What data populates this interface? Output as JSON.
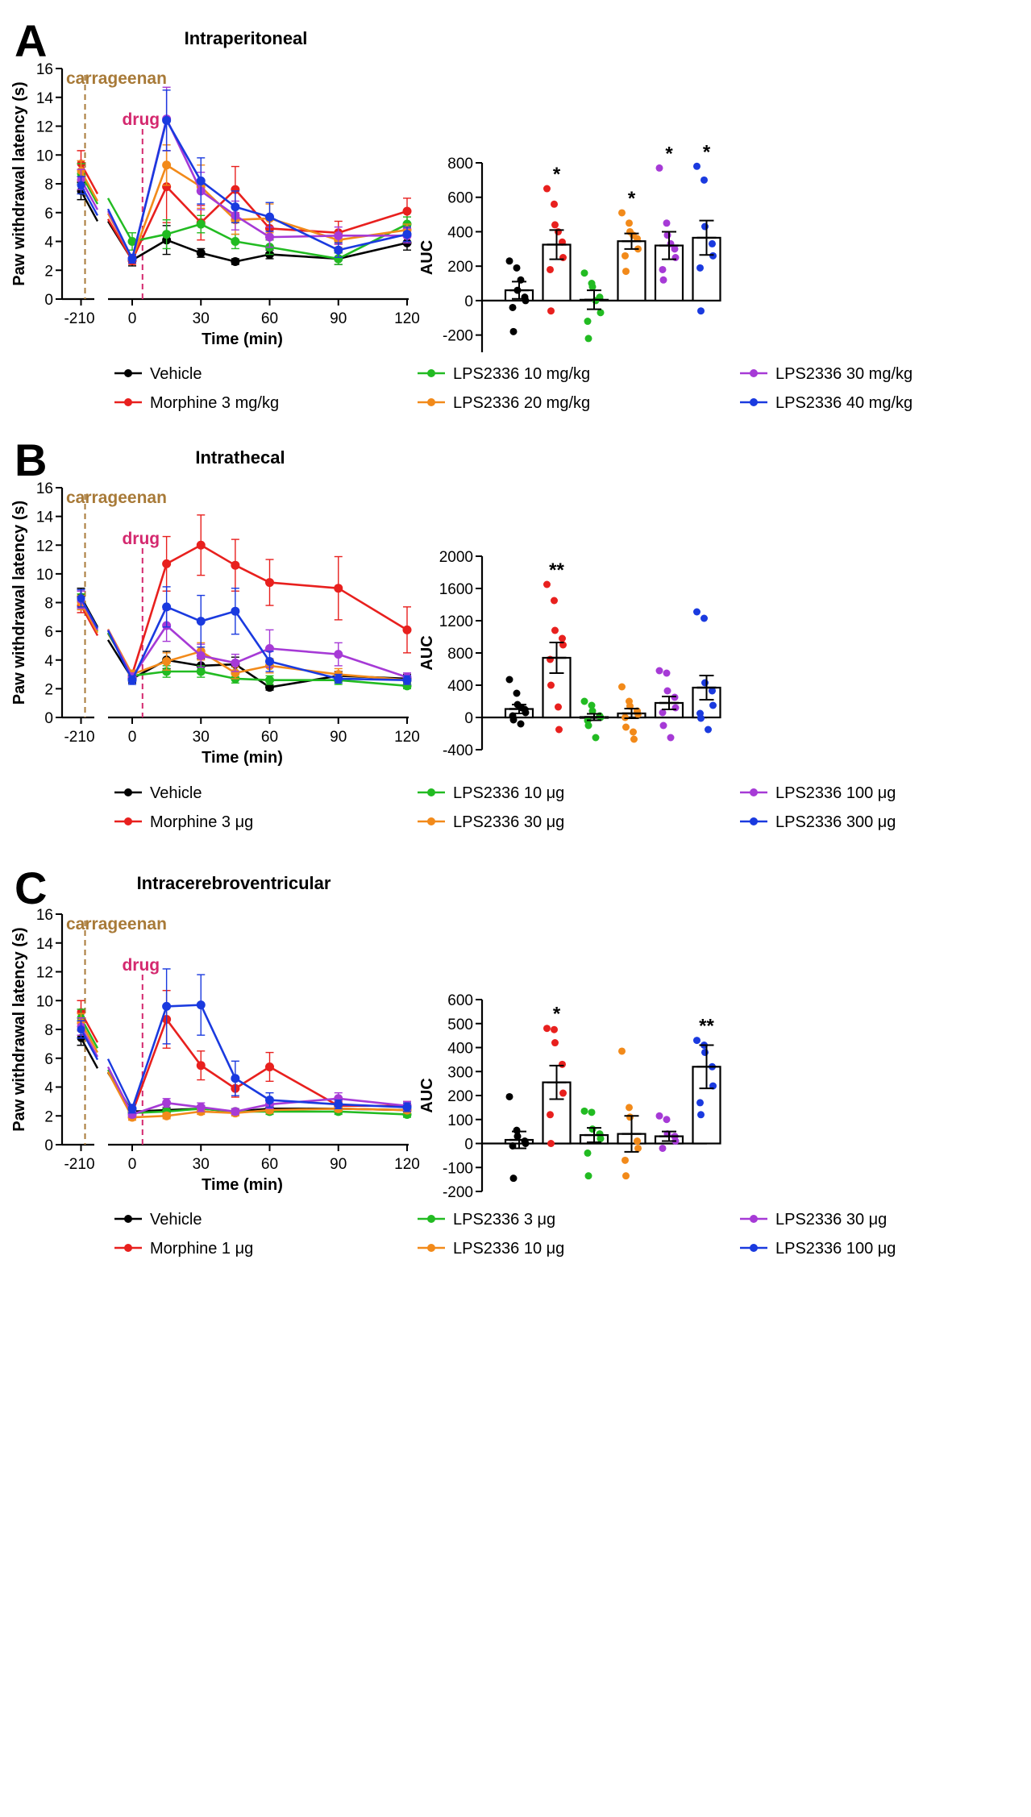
{
  "figure": {
    "colors": {
      "axis": "#000000",
      "carrageenan": "#a87a38",
      "drug": "#d4286e",
      "vehicle": "#000000",
      "morphine": "#e8201e",
      "dose1": "#22bb22",
      "dose2": "#f28a1a",
      "dose3": "#a63ad6",
      "dose4": "#1a3adf"
    }
  },
  "chart_data": [
    {
      "type": "line",
      "panel": "A",
      "title": "Intraperitoneal",
      "xlabel": "Time (min)",
      "ylabel": "Paw withdrawal latency (s)",
      "ylim": [
        0,
        16
      ],
      "yticks": [
        0,
        2,
        4,
        6,
        8,
        10,
        12,
        14,
        16
      ],
      "baseline_x": -210,
      "x": [
        0,
        15,
        30,
        45,
        60,
        90,
        120
      ],
      "xticks": [
        0,
        30,
        60,
        90,
        120
      ],
      "event_labels": {
        "carrageenan": "carrageenan",
        "drug": "drug"
      },
      "series": [
        {
          "name": "Vehicle",
          "color": "#000000",
          "baseline": 7.5,
          "baseline_err": 0.6,
          "values": [
            2.7,
            4.1,
            3.2,
            2.6,
            3.1,
            2.8,
            3.9
          ],
          "errors": [
            0.4,
            1.0,
            0.3,
            0.2,
            0.3,
            0.4,
            0.5
          ]
        },
        {
          "name": "Morphine 3 mg/kg",
          "color": "#e8201e",
          "baseline": 9.4,
          "baseline_err": 0.9,
          "values": [
            2.7,
            7.8,
            5.3,
            7.6,
            4.9,
            4.6,
            6.1
          ],
          "errors": [
            0.3,
            2.5,
            1.2,
            1.6,
            0.8,
            0.8,
            0.9
          ]
        },
        {
          "name": "LPS2336 10 mg/kg",
          "color": "#22bb22",
          "baseline": 8.7,
          "baseline_err": 0.7,
          "values": [
            4.0,
            4.5,
            5.2,
            4.0,
            3.6,
            2.8,
            5.2
          ],
          "errors": [
            0.6,
            1.0,
            0.6,
            0.5,
            0.5,
            0.4,
            0.5
          ]
        },
        {
          "name": "LPS2336 20 mg/kg",
          "color": "#f28a1a",
          "baseline": 8.9,
          "baseline_err": 0.7,
          "values": [
            2.8,
            9.3,
            7.8,
            5.5,
            5.6,
            4.1,
            4.8
          ],
          "errors": [
            0.3,
            1.4,
            1.5,
            1.0,
            1.0,
            0.5,
            0.4
          ]
        },
        {
          "name": "LPS2336 30 mg/kg",
          "color": "#a63ad6",
          "baseline": 8.3,
          "baseline_err": 0.7,
          "values": [
            2.8,
            12.5,
            7.5,
            5.8,
            4.3,
            4.4,
            4.4
          ],
          "errors": [
            0.3,
            2.2,
            1.3,
            1.0,
            0.7,
            0.6,
            0.5
          ]
        },
        {
          "name": "LPS2336 40 mg/kg",
          "color": "#1a3adf",
          "baseline": 7.9,
          "baseline_err": 0.6,
          "values": [
            2.8,
            12.4,
            8.2,
            6.4,
            5.7,
            3.4,
            4.5
          ],
          "errors": [
            0.3,
            2.1,
            1.6,
            1.1,
            1.0,
            0.5,
            0.5
          ]
        }
      ]
    },
    {
      "type": "bar",
      "panel": "A",
      "ylabel": "AUC",
      "ylim": [
        -300,
        800
      ],
      "yticks": [
        -200,
        0,
        200,
        400,
        600,
        800
      ],
      "bars": [
        {
          "name": "Vehicle",
          "color": "#000000",
          "value": 60,
          "sem": 50,
          "sig": "",
          "points": [
            230,
            190,
            60,
            20,
            0,
            -40,
            -180,
            120
          ]
        },
        {
          "name": "Morphine 3 mg/kg",
          "color": "#e8201e",
          "value": 325,
          "sem": 85,
          "sig": "*",
          "points": [
            650,
            560,
            440,
            340,
            250,
            180,
            -60,
            400
          ]
        },
        {
          "name": "LPS2336 10 mg/kg",
          "color": "#22bb22",
          "value": 5,
          "sem": 55,
          "sig": "",
          "points": [
            160,
            100,
            80,
            20,
            -70,
            -120,
            -220,
            0
          ]
        },
        {
          "name": "LPS2336 20 mg/kg",
          "color": "#f28a1a",
          "value": 345,
          "sem": 45,
          "sig": "*",
          "points": [
            510,
            450,
            400,
            360,
            300,
            260,
            170,
            380
          ]
        },
        {
          "name": "LPS2336 30 mg/kg",
          "color": "#a63ad6",
          "value": 320,
          "sem": 80,
          "sig": "*",
          "points": [
            770,
            450,
            380,
            300,
            250,
            180,
            120,
            330
          ]
        },
        {
          "name": "LPS2336 40 mg/kg",
          "color": "#1a3adf",
          "value": 365,
          "sem": 100,
          "sig": "*",
          "points": [
            780,
            700,
            430,
            330,
            260,
            190,
            -60
          ]
        }
      ]
    },
    {
      "type": "line",
      "panel": "B",
      "title": "Intrathecal",
      "xlabel": "Time (min)",
      "ylabel": "Paw withdrawal latency (s)",
      "ylim": [
        0,
        16
      ],
      "yticks": [
        0,
        2,
        4,
        6,
        8,
        10,
        12,
        14,
        16
      ],
      "baseline_x": -210,
      "x": [
        0,
        15,
        30,
        45,
        60,
        90,
        120
      ],
      "xticks": [
        0,
        30,
        60,
        90,
        120
      ],
      "event_labels": {
        "carrageenan": "carrageenan",
        "drug": "drug"
      },
      "series": [
        {
          "name": "Vehicle",
          "color": "#000000",
          "baseline": 8.4,
          "baseline_err": 0.6,
          "values": [
            2.7,
            4.0,
            3.6,
            3.7,
            2.1,
            2.9,
            2.7
          ],
          "errors": [
            0.3,
            0.6,
            0.5,
            0.5,
            0.2,
            0.3,
            0.3
          ]
        },
        {
          "name": "Morphine 3 μg",
          "color": "#e8201e",
          "baseline": 7.8,
          "baseline_err": 0.5,
          "values": [
            3.0,
            10.7,
            12.0,
            10.6,
            9.4,
            9.0,
            6.1
          ],
          "errors": [
            0.3,
            1.9,
            2.1,
            1.8,
            1.6,
            2.2,
            1.6
          ]
        },
        {
          "name": "LPS2336 10 μg",
          "color": "#22bb22",
          "baseline": 8.1,
          "baseline_err": 0.5,
          "values": [
            2.9,
            3.2,
            3.2,
            2.7,
            2.6,
            2.6,
            2.2
          ],
          "errors": [
            0.3,
            0.4,
            0.4,
            0.3,
            0.3,
            0.3,
            0.2
          ]
        },
        {
          "name": "LPS2336 30 μg",
          "color": "#f28a1a",
          "baseline": 8.0,
          "baseline_err": 0.5,
          "values": [
            3.0,
            3.9,
            4.6,
            3.1,
            3.6,
            3.0,
            2.6
          ],
          "errors": [
            0.3,
            0.6,
            0.6,
            0.4,
            0.5,
            0.4,
            0.3
          ]
        },
        {
          "name": "LPS2336 100 μg",
          "color": "#a63ad6",
          "baseline": 8.2,
          "baseline_err": 0.6,
          "values": [
            2.8,
            6.4,
            4.3,
            3.8,
            4.8,
            4.4,
            2.8
          ],
          "errors": [
            0.3,
            1.1,
            0.8,
            0.6,
            1.3,
            0.8,
            0.3
          ]
        },
        {
          "name": "LPS2336 300 μg",
          "color": "#1a3adf",
          "baseline": 8.3,
          "baseline_err": 0.6,
          "values": [
            2.6,
            7.7,
            6.7,
            7.4,
            3.9,
            2.7,
            2.6
          ],
          "errors": [
            0.3,
            1.4,
            1.8,
            1.6,
            0.7,
            0.3,
            0.3
          ]
        }
      ]
    },
    {
      "type": "bar",
      "panel": "B",
      "ylabel": "AUC",
      "ylim": [
        -400,
        2000
      ],
      "yticks": [
        -400,
        0,
        400,
        800,
        1200,
        1600,
        2000
      ],
      "bars": [
        {
          "name": "Vehicle",
          "color": "#000000",
          "value": 105,
          "sem": 55,
          "sig": "",
          "points": [
            470,
            300,
            160,
            100,
            60,
            20,
            -30,
            -80,
            120
          ]
        },
        {
          "name": "Morphine 3 μg",
          "color": "#e8201e",
          "value": 740,
          "sem": 190,
          "sig": "**",
          "points": [
            1650,
            1450,
            1080,
            980,
            900,
            720,
            400,
            130,
            -150
          ]
        },
        {
          "name": "LPS2336 10 μg",
          "color": "#22bb22",
          "value": 5,
          "sem": 40,
          "sig": "",
          "points": [
            200,
            150,
            80,
            20,
            0,
            -40,
            -100,
            -250
          ]
        },
        {
          "name": "LPS2336 30 μg",
          "color": "#f28a1a",
          "value": 50,
          "sem": 60,
          "sig": "",
          "points": [
            380,
            200,
            140,
            80,
            40,
            0,
            -120,
            -180,
            -270
          ]
        },
        {
          "name": "LPS2336 100 μg",
          "color": "#a63ad6",
          "value": 180,
          "sem": 80,
          "sig": "",
          "points": [
            580,
            550,
            330,
            250,
            120,
            60,
            -100,
            -250
          ]
        },
        {
          "name": "LPS2336 300 μg",
          "color": "#1a3adf",
          "value": 370,
          "sem": 150,
          "sig": "",
          "points": [
            1310,
            1230,
            430,
            330,
            150,
            50,
            -10,
            -150
          ]
        }
      ]
    },
    {
      "type": "line",
      "panel": "C",
      "title": "Intracerebroventricular",
      "xlabel": "Time (min)",
      "ylabel": "Paw withdrawal latency (s)",
      "ylim": [
        0,
        16
      ],
      "yticks": [
        0,
        2,
        4,
        6,
        8,
        10,
        12,
        14,
        16
      ],
      "baseline_x": -210,
      "x": [
        0,
        15,
        30,
        45,
        60,
        90,
        120
      ],
      "xticks": [
        0,
        30,
        60,
        90,
        120
      ],
      "event_labels": {
        "carrageenan": "carrageenan",
        "drug": "drug"
      },
      "series": [
        {
          "name": "Vehicle",
          "color": "#000000",
          "baseline": 7.4,
          "baseline_err": 0.5,
          "values": [
            2.3,
            2.4,
            2.5,
            2.3,
            2.5,
            2.5,
            2.4
          ],
          "errors": [
            0.2,
            0.2,
            0.2,
            0.2,
            0.2,
            0.2,
            0.2
          ]
        },
        {
          "name": "Morphine 1 μg",
          "color": "#e8201e",
          "baseline": 9.2,
          "baseline_err": 0.8,
          "values": [
            2.2,
            8.7,
            5.5,
            3.9,
            5.4,
            2.7,
            2.7
          ],
          "errors": [
            0.3,
            2.0,
            1.0,
            0.6,
            1.0,
            0.3,
            0.3
          ]
        },
        {
          "name": "LPS2336 3 μg",
          "color": "#22bb22",
          "baseline": 8.8,
          "baseline_err": 0.6,
          "values": [
            2.2,
            2.3,
            2.5,
            2.3,
            2.3,
            2.3,
            2.1
          ],
          "errors": [
            0.2,
            0.2,
            0.2,
            0.2,
            0.2,
            0.2,
            0.2
          ]
        },
        {
          "name": "LPS2336 10 μg",
          "color": "#f28a1a",
          "baseline": 8.5,
          "baseline_err": 0.6,
          "values": [
            1.9,
            2.0,
            2.3,
            2.2,
            2.4,
            2.5,
            2.4
          ],
          "errors": [
            0.2,
            0.2,
            0.2,
            0.2,
            0.2,
            0.2,
            0.2
          ]
        },
        {
          "name": "LPS2336 30 μg",
          "color": "#a63ad6",
          "baseline": 8.2,
          "baseline_err": 0.6,
          "values": [
            2.1,
            2.9,
            2.6,
            2.3,
            2.8,
            3.2,
            2.7
          ],
          "errors": [
            0.2,
            0.3,
            0.3,
            0.2,
            0.3,
            0.4,
            0.3
          ]
        },
        {
          "name": "LPS2336 100 μg",
          "color": "#1a3adf",
          "baseline": 8.0,
          "baseline_err": 0.6,
          "values": [
            2.5,
            9.6,
            9.7,
            4.6,
            3.1,
            2.8,
            2.6
          ],
          "errors": [
            0.3,
            2.6,
            2.1,
            1.2,
            0.5,
            0.3,
            0.3
          ]
        }
      ]
    },
    {
      "type": "bar",
      "panel": "C",
      "ylabel": "AUC",
      "ylim": [
        -200,
        600
      ],
      "yticks": [
        -200,
        -100,
        0,
        100,
        200,
        300,
        400,
        500,
        600
      ],
      "bars": [
        {
          "name": "Vehicle",
          "color": "#000000",
          "value": 15,
          "sem": 35,
          "sig": "",
          "points": [
            195,
            55,
            30,
            10,
            0,
            -10,
            -145
          ]
        },
        {
          "name": "Morphine 1 μg",
          "color": "#e8201e",
          "value": 255,
          "sem": 70,
          "sig": "*",
          "points": [
            480,
            475,
            420,
            330,
            210,
            120,
            0
          ]
        },
        {
          "name": "LPS2336 3 μg",
          "color": "#22bb22",
          "value": 35,
          "sem": 30,
          "sig": "",
          "points": [
            135,
            130,
            60,
            40,
            20,
            -40,
            -135
          ]
        },
        {
          "name": "LPS2336 10 μg",
          "color": "#f28a1a",
          "value": 40,
          "sem": 75,
          "sig": "",
          "points": [
            385,
            150,
            110,
            10,
            -20,
            -70,
            -135
          ]
        },
        {
          "name": "LPS2336 30 μg",
          "color": "#a63ad6",
          "value": 30,
          "sem": 20,
          "sig": "",
          "points": [
            115,
            100,
            40,
            30,
            10,
            -20
          ]
        },
        {
          "name": "LPS2336 100 μg",
          "color": "#1a3adf",
          "value": 320,
          "sem": 90,
          "sig": "**",
          "points": [
            430,
            410,
            380,
            320,
            240,
            170,
            120
          ]
        }
      ]
    }
  ]
}
